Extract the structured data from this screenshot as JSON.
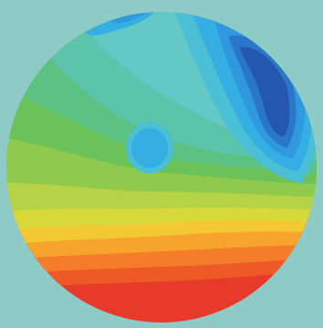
{
  "colors": {
    "background": "#8ecac6",
    "band_1": "#e83a2a",
    "band_2": "#ee5a27",
    "band_3": "#f47d29",
    "band_4": "#f6a42c",
    "band_5": "#f3c833",
    "band_6": "#d9d83b",
    "band_7": "#b5d346",
    "band_8": "#8fca4c",
    "band_9": "#6cc25a",
    "band_10": "#5bc283",
    "band_11": "#5cc4ad",
    "band_12": "#63c8c6",
    "band_13": "#4bbfd6",
    "band_14": "#35aee3",
    "band_15": "#3098df",
    "band_16": "#2a77c9",
    "band_17": "#2358ae"
  },
  "chart_data": {
    "type": "heatmap",
    "shape": "circular-disc",
    "colormap": "jet-reversed",
    "levels": 17,
    "regions": [
      {
        "name": "maximum",
        "location": "bottom",
        "level": 1
      },
      {
        "name": "high-gradient-band",
        "location": "lower-middle",
        "levels": [
          2,
          9
        ]
      },
      {
        "name": "central-plateau",
        "location": "center",
        "level": 12
      },
      {
        "name": "local-minimum",
        "location": "center-left",
        "level": 14
      },
      {
        "name": "global-minimum",
        "location": "upper-right",
        "level": 17
      }
    ]
  }
}
